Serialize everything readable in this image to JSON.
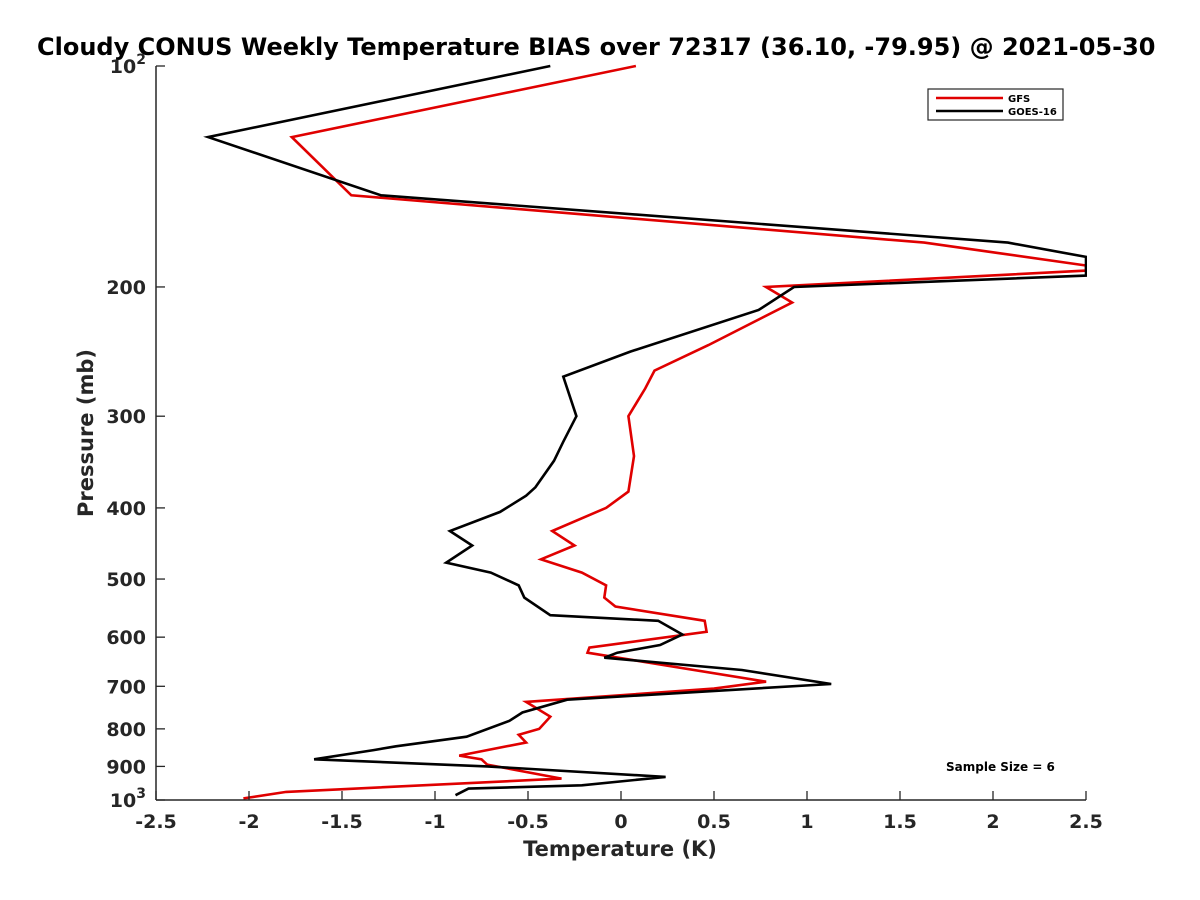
{
  "chart_data": {
    "type": "line",
    "title": "Cloudy CONUS Weekly Temperature BIAS over 72317 (36.10, -79.95) @ 2021-05-30",
    "xlabel": "Temperature (K)",
    "ylabel": "Pressure (mb)",
    "xlim": [
      -2.5,
      2.5
    ],
    "ylim": [
      1000,
      100
    ],
    "y_scale": "log",
    "y_reversed": true,
    "x_ticks": [
      "-2.5",
      "-2",
      "-1.5",
      "-1",
      "-0.5",
      "0",
      "0.5",
      "1",
      "1.5",
      "2",
      "2.5"
    ],
    "y_ticks": [
      {
        "value": 100,
        "base": "10",
        "exp": "2"
      },
      {
        "value": 200,
        "label": "200"
      },
      {
        "value": 300,
        "label": "300"
      },
      {
        "value": 400,
        "label": "400"
      },
      {
        "value": 500,
        "label": "500"
      },
      {
        "value": 600,
        "label": "600"
      },
      {
        "value": 700,
        "label": "700"
      },
      {
        "value": 800,
        "label": "800"
      },
      {
        "value": 900,
        "label": "900"
      },
      {
        "value": 1000,
        "base": "10",
        "exp": "3"
      }
    ],
    "grid": false,
    "legend_position": "top-right",
    "annotation": "Sample Size = 6",
    "series": [
      {
        "name": "GFS",
        "color": "#e00000",
        "points": [
          [
            0.08,
            100
          ],
          [
            -1.77,
            125
          ],
          [
            -1.45,
            150
          ],
          [
            1.63,
            174
          ],
          [
            2.5,
            187
          ],
          [
            2.5,
            190
          ],
          [
            0.78,
            200
          ],
          [
            0.92,
            210
          ],
          [
            0.47,
            240
          ],
          [
            0.18,
            260
          ],
          [
            0.13,
            275
          ],
          [
            0.04,
            300
          ],
          [
            0.07,
            340
          ],
          [
            0.04,
            380
          ],
          [
            -0.08,
            400
          ],
          [
            -0.37,
            430
          ],
          [
            -0.25,
            450
          ],
          [
            -0.43,
            470
          ],
          [
            -0.21,
            490
          ],
          [
            -0.08,
            510
          ],
          [
            -0.09,
            530
          ],
          [
            -0.03,
            545
          ],
          [
            0.45,
            570
          ],
          [
            0.46,
            590
          ],
          [
            -0.17,
            620
          ],
          [
            -0.18,
            630
          ],
          [
            0.78,
            690
          ],
          [
            0.5,
            705
          ],
          [
            -0.51,
            735
          ],
          [
            -0.38,
            770
          ],
          [
            -0.44,
            800
          ],
          [
            -0.55,
            815
          ],
          [
            -0.51,
            835
          ],
          [
            -0.87,
            870
          ],
          [
            -0.75,
            880
          ],
          [
            -0.72,
            895
          ],
          [
            -0.32,
            935
          ],
          [
            -1.8,
            975
          ],
          [
            -2.03,
            995
          ]
        ]
      },
      {
        "name": "GOES-16",
        "color": "#000000",
        "points": [
          [
            -0.38,
            100
          ],
          [
            -2.22,
            125
          ],
          [
            -1.29,
            150
          ],
          [
            2.08,
            174
          ],
          [
            2.5,
            182
          ],
          [
            2.5,
            193
          ],
          [
            0.93,
            200
          ],
          [
            0.74,
            215
          ],
          [
            0.05,
            245
          ],
          [
            -0.31,
            265
          ],
          [
            -0.24,
            300
          ],
          [
            -0.31,
            325
          ],
          [
            -0.36,
            345
          ],
          [
            -0.46,
            375
          ],
          [
            -0.51,
            385
          ],
          [
            -0.65,
            405
          ],
          [
            -0.92,
            430
          ],
          [
            -0.8,
            450
          ],
          [
            -0.94,
            475
          ],
          [
            -0.7,
            490
          ],
          [
            -0.55,
            510
          ],
          [
            -0.52,
            530
          ],
          [
            -0.38,
            560
          ],
          [
            0.2,
            570
          ],
          [
            0.33,
            595
          ],
          [
            0.21,
            615
          ],
          [
            -0.02,
            630
          ],
          [
            -0.09,
            640
          ],
          [
            0.65,
            665
          ],
          [
            1.13,
            695
          ],
          [
            -0.29,
            730
          ],
          [
            -0.53,
            760
          ],
          [
            -0.6,
            780
          ],
          [
            -0.83,
            820
          ],
          [
            -1.21,
            845
          ],
          [
            -1.33,
            855
          ],
          [
            -1.65,
            880
          ],
          [
            -0.72,
            900
          ],
          [
            0.24,
            930
          ],
          [
            -0.21,
            955
          ],
          [
            -0.82,
            965
          ],
          [
            -0.89,
            985
          ]
        ]
      }
    ]
  }
}
